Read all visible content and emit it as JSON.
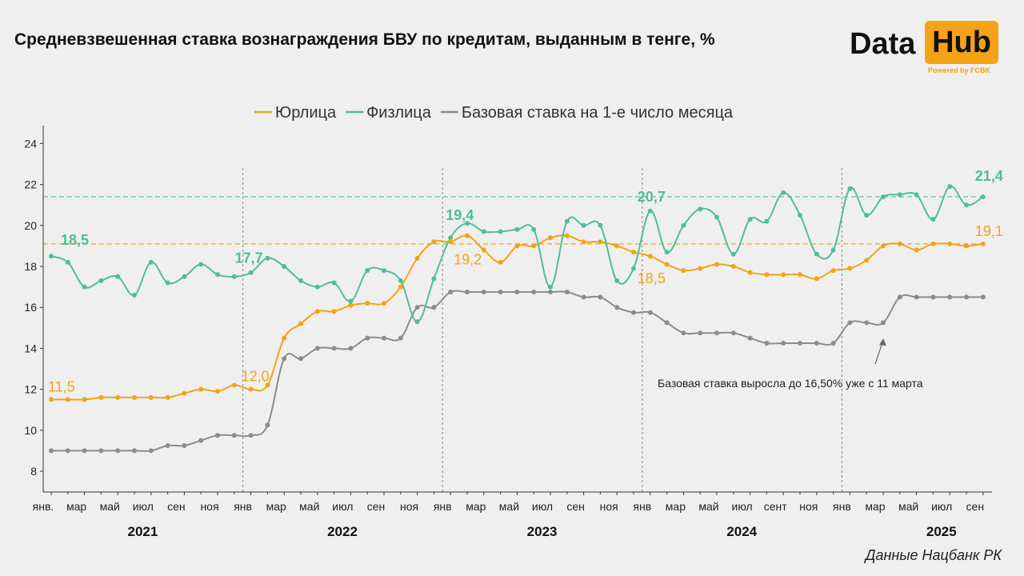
{
  "title": "Средневзвешенная ставка вознаграждения БВУ по кредитам, выданным в тенге, %",
  "logo": {
    "left": "Data",
    "right": "Hub",
    "tagline": "Powered by FCBK"
  },
  "source": "Данные Нацбанк РК",
  "colors": {
    "legal": "#f5a316",
    "individual": "#4fbf97",
    "base": "#8c8c8c",
    "axis": "#333333"
  },
  "chart_data": {
    "type": "line",
    "title": "Средневзвешенная ставка вознаграждения БВУ по кредитам, выданным в тенге, %",
    "ylim": [
      7,
      25
    ],
    "yticks": [
      8,
      10,
      12,
      14,
      16,
      18,
      20,
      22,
      24
    ],
    "grid": false,
    "legend_position": "top-center",
    "year_labels": [
      "2021",
      "2022",
      "2023",
      "2024",
      "2025"
    ],
    "month_ticks": [
      "янв.",
      "мар",
      "май",
      "июл",
      "сен",
      "ноя",
      "янв",
      "мар",
      "май",
      "июл",
      "сен",
      "ноя",
      "янв",
      "мар",
      "май",
      "июл",
      "сен",
      "ноя",
      "янв",
      "мар",
      "май",
      "июл",
      "сент",
      "ноя",
      "янв",
      "мар",
      "май",
      "июл",
      "сен"
    ],
    "x": [
      "2021-01",
      "2021-02",
      "2021-03",
      "2021-04",
      "2021-05",
      "2021-06",
      "2021-07",
      "2021-08",
      "2021-09",
      "2021-10",
      "2021-11",
      "2021-12",
      "2022-01",
      "2022-02",
      "2022-03",
      "2022-04",
      "2022-05",
      "2022-06",
      "2022-07",
      "2022-08",
      "2022-09",
      "2022-10",
      "2022-11",
      "2022-12",
      "2023-01",
      "2023-02",
      "2023-03",
      "2023-04",
      "2023-05",
      "2023-06",
      "2023-07",
      "2023-08",
      "2023-09",
      "2023-10",
      "2023-11",
      "2023-12",
      "2024-01",
      "2024-02",
      "2024-03",
      "2024-04",
      "2024-05",
      "2024-06",
      "2024-07",
      "2024-08",
      "2024-09",
      "2024-10",
      "2024-11",
      "2024-12",
      "2025-01",
      "2025-02",
      "2025-03",
      "2025-04",
      "2025-05",
      "2025-06",
      "2025-07",
      "2025-08",
      "2025-09"
    ],
    "series": [
      {
        "name": "Юрлица",
        "color": "#f5a316",
        "values": [
          11.5,
          11.5,
          11.5,
          11.6,
          11.6,
          11.6,
          11.6,
          11.6,
          11.8,
          12.0,
          11.9,
          12.2,
          12.0,
          12.2,
          14.5,
          15.2,
          15.8,
          15.8,
          16.1,
          16.2,
          16.2,
          17.0,
          18.4,
          19.2,
          19.2,
          19.5,
          18.8,
          18.2,
          19.0,
          19.0,
          19.4,
          19.5,
          19.2,
          19.2,
          19.0,
          18.7,
          18.5,
          18.1,
          17.8,
          17.9,
          18.1,
          18.0,
          17.7,
          17.6,
          17.6,
          17.6,
          17.4,
          17.8,
          17.9,
          18.3,
          19.0,
          19.1,
          18.8,
          19.1,
          19.1,
          19.0,
          19.1
        ]
      },
      {
        "name": "Физлица",
        "color": "#4fbf97",
        "values": [
          18.5,
          18.2,
          17.0,
          17.3,
          17.5,
          16.6,
          18.2,
          17.2,
          17.5,
          18.1,
          17.6,
          17.5,
          17.7,
          18.4,
          18.0,
          17.3,
          17.0,
          17.2,
          16.3,
          17.8,
          17.8,
          17.3,
          15.3,
          17.4,
          19.4,
          20.1,
          19.7,
          19.7,
          19.8,
          19.8,
          17.0,
          20.2,
          20.0,
          20.0,
          17.3,
          17.9,
          20.7,
          18.7,
          20.0,
          20.8,
          20.4,
          18.6,
          20.3,
          20.2,
          21.6,
          20.5,
          18.6,
          18.8,
          21.8,
          20.5,
          21.4,
          21.5,
          21.5,
          20.3,
          21.9,
          21.0,
          21.4
        ]
      },
      {
        "name": "Базовая ставка на 1-е число месяца",
        "color": "#8c8c8c",
        "values": [
          9.0,
          9.0,
          9.0,
          9.0,
          9.0,
          9.0,
          9.0,
          9.25,
          9.25,
          9.5,
          9.75,
          9.75,
          9.75,
          10.25,
          13.5,
          13.5,
          14.0,
          14.0,
          14.0,
          14.5,
          14.5,
          14.5,
          16.0,
          16.0,
          16.75,
          16.75,
          16.75,
          16.75,
          16.75,
          16.75,
          16.75,
          16.75,
          16.5,
          16.5,
          16.0,
          15.75,
          15.75,
          15.25,
          14.75,
          14.75,
          14.75,
          14.75,
          14.5,
          14.25,
          14.25,
          14.25,
          14.25,
          14.25,
          15.25,
          15.25,
          15.25,
          16.5,
          16.5,
          16.5,
          16.5,
          16.5,
          16.5
        ]
      }
    ],
    "reference_lines": [
      {
        "value": 21.4,
        "color": "#4fbf97"
      },
      {
        "value": 19.1,
        "color": "#f5a316"
      }
    ],
    "data_labels": [
      {
        "series": 0,
        "index": 0,
        "text": "11,5",
        "dx": -4,
        "dy": -10
      },
      {
        "series": 0,
        "index": 12,
        "text": "12,0",
        "dx": -12,
        "dy": -10
      },
      {
        "series": 0,
        "index": 24,
        "text": "19,2",
        "dx": 4,
        "dy": 28
      },
      {
        "series": 0,
        "index": 36,
        "text": "18,5",
        "dx": -16,
        "dy": 34
      },
      {
        "series": 0,
        "index": 56,
        "text": "19,1",
        "dx": -10,
        "dy": -10
      },
      {
        "series": 1,
        "index": 0,
        "text": "18,5",
        "dx": 12,
        "dy": -14
      },
      {
        "series": 1,
        "index": 12,
        "text": "17,7",
        "dx": -20,
        "dy": -12
      },
      {
        "series": 1,
        "index": 24,
        "text": "19,4",
        "dx": -6,
        "dy": -22
      },
      {
        "series": 1,
        "index": 36,
        "text": "20,7",
        "dx": -16,
        "dy": -12
      },
      {
        "series": 1,
        "index": 56,
        "text": "21,4",
        "dx": -10,
        "dy": -20
      }
    ],
    "annotation": {
      "text": "Базовая ставка выросла до 16,50% уже с 11 марта",
      "arrow_target_index": 50,
      "arrow_target_value": 14.4
    }
  }
}
